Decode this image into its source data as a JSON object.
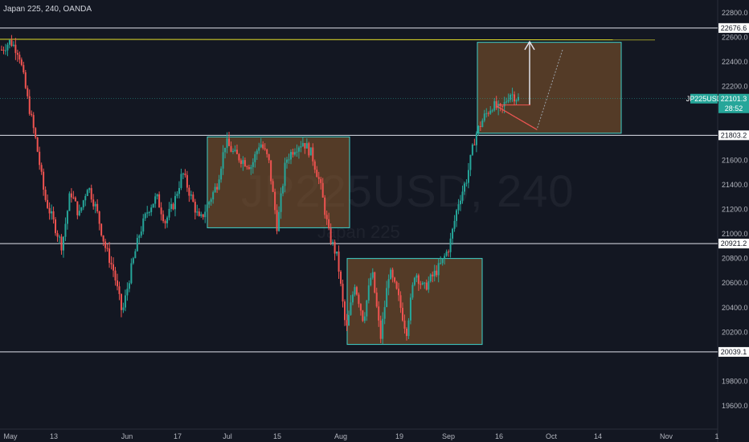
{
  "header": {
    "title": "Japan 225, 240, OANDA"
  },
  "watermark": {
    "symbol": "JP225USD, 240",
    "name": "Japan 225"
  },
  "colors": {
    "background": "#131722",
    "up": "#26a69a",
    "down": "#ef5350",
    "zone": "#8a5a2b",
    "zone_border": "#3fd1c9",
    "yellow": "#e5e02a",
    "white_line": "#e0e3eb"
  },
  "chart_data": {
    "type": "candlestick",
    "symbol": "JP225USD",
    "timeframe": "240",
    "ylim": [
      19400,
      22900
    ],
    "y_ticks": [
      {
        "label": "22800.0",
        "v": 22800
      },
      {
        "label": "22600.0",
        "v": 22600
      },
      {
        "label": "22400.0",
        "v": 22400
      },
      {
        "label": "22200.0",
        "v": 22200
      },
      {
        "label": "21600.0",
        "v": 21600
      },
      {
        "label": "21400.0",
        "v": 21400
      },
      {
        "label": "21200.0",
        "v": 21200
      },
      {
        "label": "21000.0",
        "v": 21000
      },
      {
        "label": "20800.0",
        "v": 20800
      },
      {
        "label": "20600.0",
        "v": 20600
      },
      {
        "label": "20400.0",
        "v": 20400
      },
      {
        "label": "20200.0",
        "v": 20200
      },
      {
        "label": "19800.0",
        "v": 19800
      },
      {
        "label": "19600.0",
        "v": 19600
      }
    ],
    "x_ticks": [
      "May",
      "13",
      "Jun",
      "17",
      "Jul",
      "15",
      "Aug",
      "19",
      "Sep",
      "16",
      "Oct",
      "14",
      "Nov",
      "1"
    ],
    "levels": [
      {
        "label": "22676.6",
        "v": 22676.6
      },
      {
        "label": "21803.2",
        "v": 21803.2
      },
      {
        "label": "20921.2",
        "v": 20921.2
      },
      {
        "label": "20039.1",
        "v": 20039.1
      }
    ],
    "last_price": {
      "symbol": "JP225USD",
      "price": "22101.3",
      "countdown": "28:52",
      "v": 22101.3
    },
    "trendline_level": 22580,
    "zones": [
      {
        "from": 21050,
        "to": 21790
      },
      {
        "from": 20100,
        "to": 20800
      },
      {
        "from": 21820,
        "to": 22560
      }
    ],
    "price_path": [
      22500,
      22570,
      22480,
      22100,
      21750,
      21300,
      21100,
      20900,
      21350,
      21150,
      21400,
      21200,
      20900,
      20700,
      20350,
      20700,
      21000,
      21200,
      21300,
      21100,
      21250,
      21500,
      21300,
      21100,
      21250,
      21400,
      21750,
      21650,
      21600,
      21550,
      21750,
      21600,
      21050,
      21600,
      21700,
      21750,
      21650,
      21400,
      21000,
      20800,
      20200,
      20600,
      20300,
      20700,
      20150,
      20700,
      20500,
      20200,
      20700,
      20550,
      20650,
      20750,
      20900,
      21250,
      21450,
      21800,
      21950,
      22050,
      22000,
      22150,
      22100
    ]
  }
}
